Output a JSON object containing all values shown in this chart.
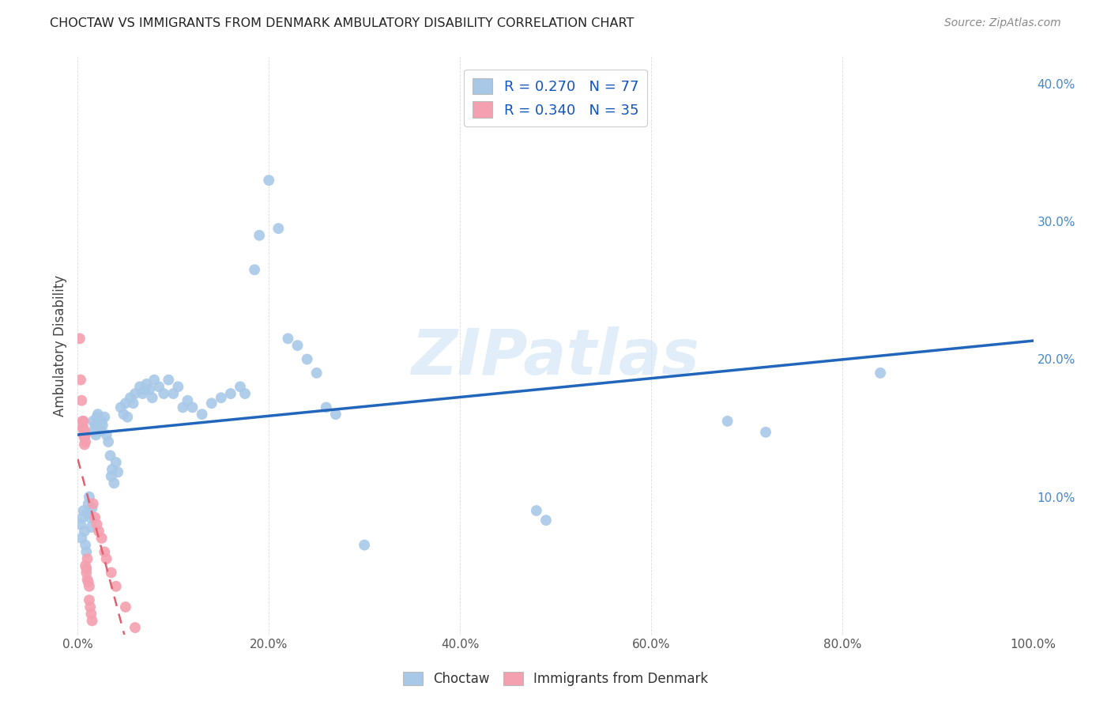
{
  "title": "CHOCTAW VS IMMIGRANTS FROM DENMARK AMBULATORY DISABILITY CORRELATION CHART",
  "source": "Source: ZipAtlas.com",
  "ylabel": "Ambulatory Disability",
  "watermark": "ZIPatlas",
  "xlim": [
    0,
    1.0
  ],
  "ylim": [
    0,
    0.42
  ],
  "xticks": [
    0.0,
    0.2,
    0.4,
    0.6,
    0.8,
    1.0
  ],
  "xtick_labels": [
    "0.0%",
    "20.0%",
    "40.0%",
    "60.0%",
    "80.0%",
    "100.0%"
  ],
  "yticks_right": [
    0.1,
    0.2,
    0.3,
    0.4
  ],
  "ytick_labels_right": [
    "10.0%",
    "20.0%",
    "30.0%",
    "40.0%"
  ],
  "choctaw_color": "#a8c8e8",
  "denmark_color": "#f4a0b0",
  "choctaw_line_color": "#2266bb",
  "denmark_line_color": "#e06070",
  "choctaw_R": 0.27,
  "choctaw_N": 77,
  "denmark_R": 0.34,
  "denmark_N": 35,
  "choctaw_scatter": [
    [
      0.003,
      0.08
    ],
    [
      0.004,
      0.07
    ],
    [
      0.005,
      0.085
    ],
    [
      0.006,
      0.09
    ],
    [
      0.007,
      0.075
    ],
    [
      0.008,
      0.065
    ],
    [
      0.009,
      0.06
    ],
    [
      0.01,
      0.088
    ],
    [
      0.011,
      0.095
    ],
    [
      0.012,
      0.1
    ],
    [
      0.013,
      0.085
    ],
    [
      0.014,
      0.078
    ],
    [
      0.015,
      0.092
    ],
    [
      0.016,
      0.155
    ],
    [
      0.017,
      0.148
    ],
    [
      0.018,
      0.152
    ],
    [
      0.019,
      0.145
    ],
    [
      0.02,
      0.158
    ],
    [
      0.021,
      0.16
    ],
    [
      0.022,
      0.155
    ],
    [
      0.023,
      0.15
    ],
    [
      0.024,
      0.148
    ],
    [
      0.025,
      0.155
    ],
    [
      0.026,
      0.152
    ],
    [
      0.028,
      0.158
    ],
    [
      0.03,
      0.145
    ],
    [
      0.032,
      0.14
    ],
    [
      0.034,
      0.13
    ],
    [
      0.035,
      0.115
    ],
    [
      0.036,
      0.12
    ],
    [
      0.038,
      0.11
    ],
    [
      0.04,
      0.125
    ],
    [
      0.042,
      0.118
    ],
    [
      0.045,
      0.165
    ],
    [
      0.048,
      0.16
    ],
    [
      0.05,
      0.168
    ],
    [
      0.052,
      0.158
    ],
    [
      0.055,
      0.172
    ],
    [
      0.058,
      0.168
    ],
    [
      0.06,
      0.175
    ],
    [
      0.065,
      0.18
    ],
    [
      0.068,
      0.175
    ],
    [
      0.07,
      0.178
    ],
    [
      0.072,
      0.182
    ],
    [
      0.075,
      0.178
    ],
    [
      0.078,
      0.172
    ],
    [
      0.08,
      0.185
    ],
    [
      0.085,
      0.18
    ],
    [
      0.09,
      0.175
    ],
    [
      0.095,
      0.185
    ],
    [
      0.1,
      0.175
    ],
    [
      0.105,
      0.18
    ],
    [
      0.11,
      0.165
    ],
    [
      0.115,
      0.17
    ],
    [
      0.12,
      0.165
    ],
    [
      0.13,
      0.16
    ],
    [
      0.14,
      0.168
    ],
    [
      0.15,
      0.172
    ],
    [
      0.16,
      0.175
    ],
    [
      0.17,
      0.18
    ],
    [
      0.175,
      0.175
    ],
    [
      0.185,
      0.265
    ],
    [
      0.19,
      0.29
    ],
    [
      0.2,
      0.33
    ],
    [
      0.21,
      0.295
    ],
    [
      0.22,
      0.215
    ],
    [
      0.23,
      0.21
    ],
    [
      0.24,
      0.2
    ],
    [
      0.25,
      0.19
    ],
    [
      0.26,
      0.165
    ],
    [
      0.27,
      0.16
    ],
    [
      0.3,
      0.065
    ],
    [
      0.48,
      0.09
    ],
    [
      0.49,
      0.083
    ],
    [
      0.68,
      0.155
    ],
    [
      0.72,
      0.147
    ],
    [
      0.84,
      0.19
    ]
  ],
  "denmark_scatter": [
    [
      0.002,
      0.215
    ],
    [
      0.003,
      0.185
    ],
    [
      0.004,
      0.17
    ],
    [
      0.005,
      0.155
    ],
    [
      0.005,
      0.15
    ],
    [
      0.006,
      0.155
    ],
    [
      0.006,
      0.15
    ],
    [
      0.006,
      0.145
    ],
    [
      0.007,
      0.148
    ],
    [
      0.007,
      0.143
    ],
    [
      0.007,
      0.138
    ],
    [
      0.008,
      0.145
    ],
    [
      0.008,
      0.14
    ],
    [
      0.008,
      0.05
    ],
    [
      0.009,
      0.048
    ],
    [
      0.009,
      0.045
    ],
    [
      0.01,
      0.055
    ],
    [
      0.01,
      0.04
    ],
    [
      0.011,
      0.038
    ],
    [
      0.012,
      0.035
    ],
    [
      0.012,
      0.025
    ],
    [
      0.013,
      0.02
    ],
    [
      0.014,
      0.015
    ],
    [
      0.015,
      0.01
    ],
    [
      0.016,
      0.095
    ],
    [
      0.018,
      0.085
    ],
    [
      0.02,
      0.08
    ],
    [
      0.022,
      0.075
    ],
    [
      0.025,
      0.07
    ],
    [
      0.028,
      0.06
    ],
    [
      0.03,
      0.055
    ],
    [
      0.035,
      0.045
    ],
    [
      0.04,
      0.035
    ],
    [
      0.05,
      0.02
    ],
    [
      0.06,
      0.005
    ]
  ]
}
